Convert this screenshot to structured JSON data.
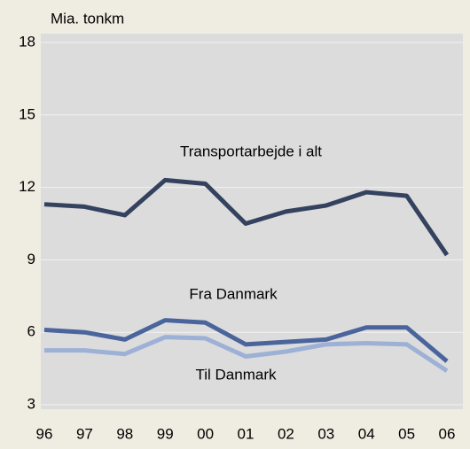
{
  "chart_data": {
    "type": "line",
    "y_label": "Mia. tonkm",
    "categories": [
      "96",
      "97",
      "98",
      "99",
      "00",
      "01",
      "02",
      "03",
      "04",
      "05",
      "06"
    ],
    "series": [
      {
        "name": "Transportarbejde i alt",
        "color": "#34425f",
        "values": [
          11.3,
          11.2,
          10.85,
          12.3,
          12.15,
          10.5,
          11.0,
          11.25,
          11.8,
          11.65,
          9.2
        ]
      },
      {
        "name": "Fra Danmark",
        "color": "#4a649c",
        "values": [
          6.1,
          6.0,
          5.7,
          6.5,
          6.4,
          5.5,
          5.6,
          5.7,
          6.2,
          6.2,
          4.8
        ]
      },
      {
        "name": "Til Danmark",
        "color": "#9db0d6",
        "values": [
          5.25,
          5.25,
          5.1,
          5.8,
          5.75,
          5.0,
          5.2,
          5.5,
          5.55,
          5.5,
          4.4
        ]
      }
    ],
    "ylim": [
      3,
      18
    ],
    "yticks": [
      3,
      6,
      9,
      12,
      15,
      18
    ],
    "grid": true
  }
}
